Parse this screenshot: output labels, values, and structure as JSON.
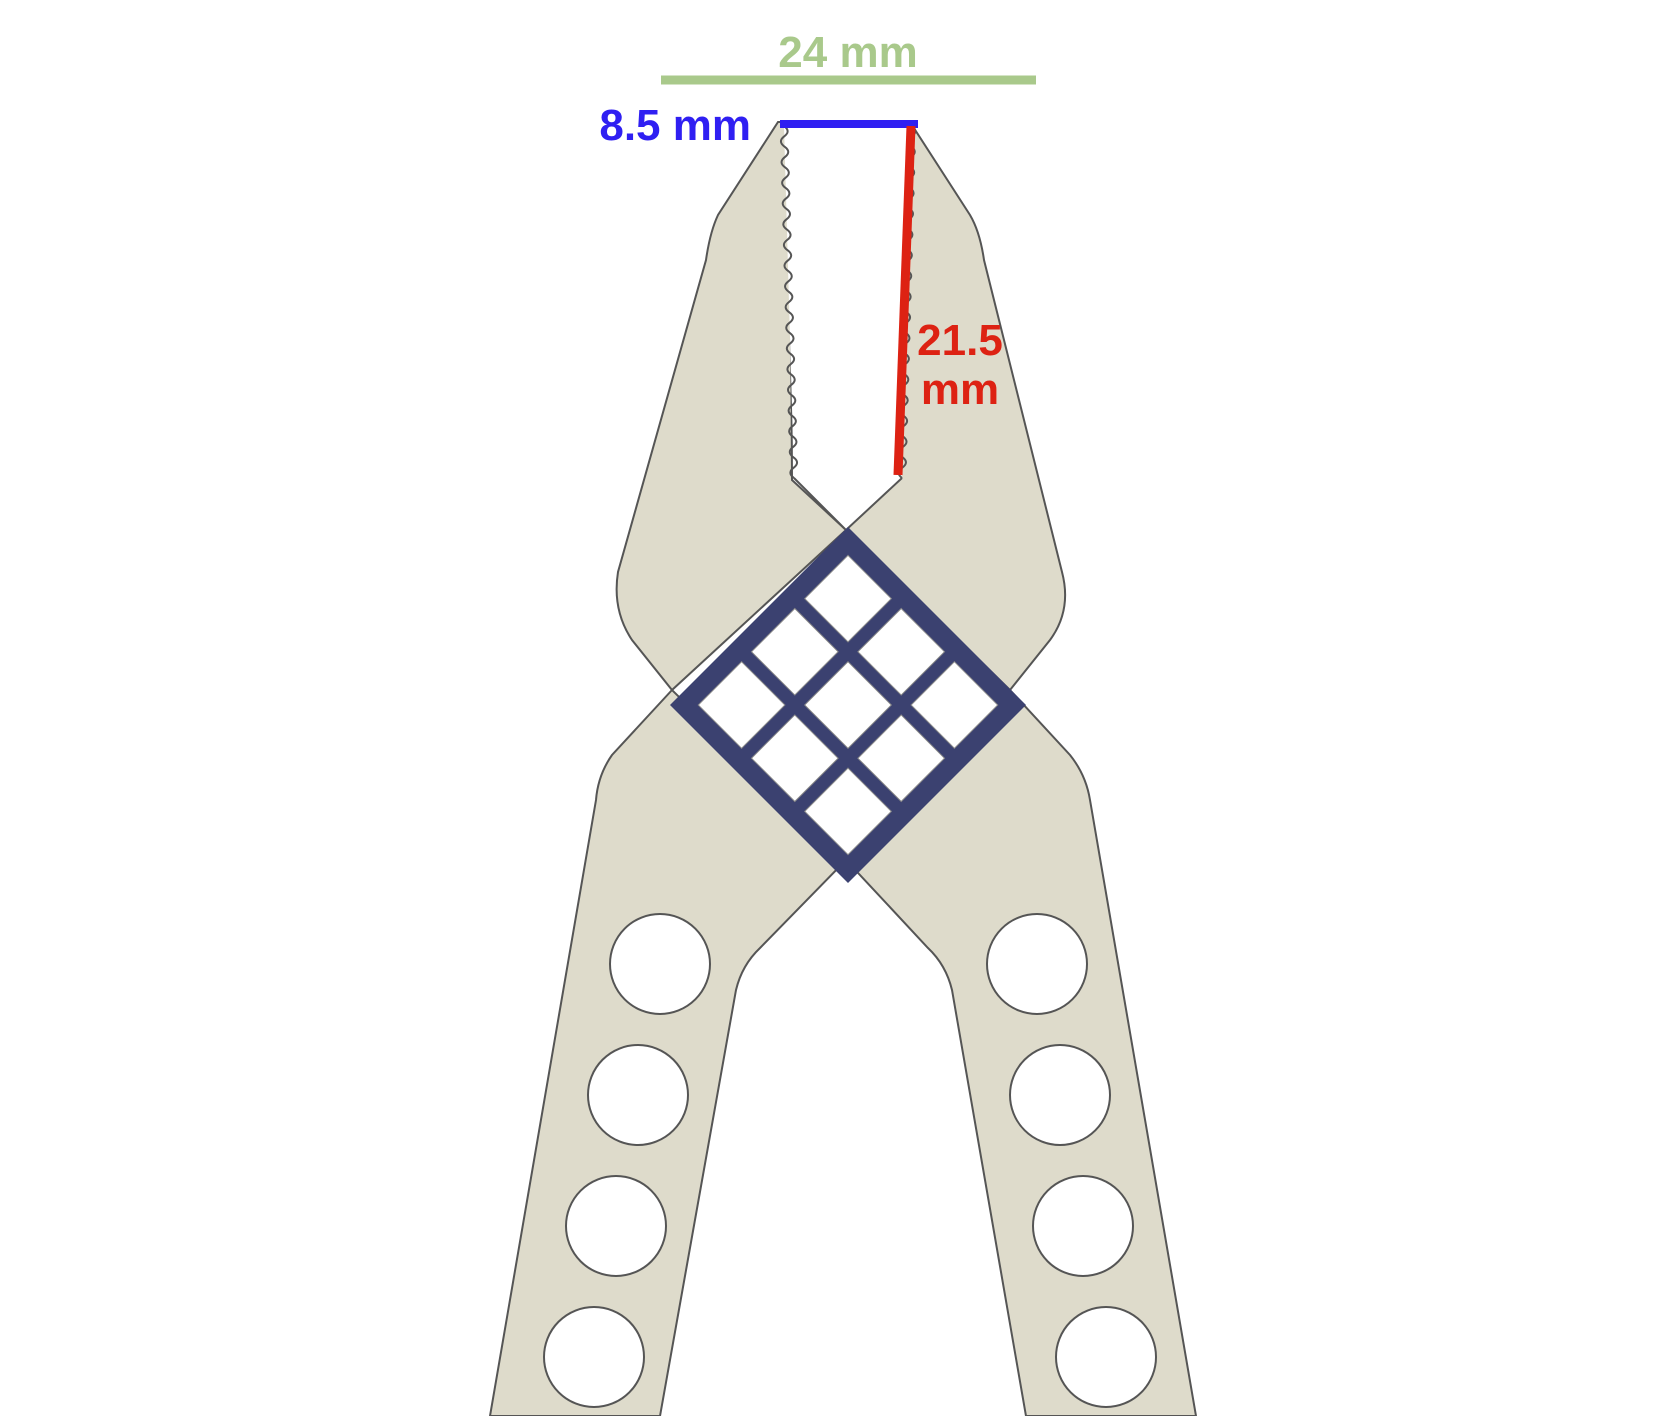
{
  "annotations": {
    "overall_width": {
      "text": "24 mm",
      "color": "#a9c98b"
    },
    "tip_width": {
      "text": "8.5 mm",
      "color": "#2f1ff2"
    },
    "jaw_length": {
      "line1": "21.5",
      "line2": "mm",
      "color": "#dd2213"
    }
  },
  "colors": {
    "body_fill": "#dedbcb",
    "outline": "#555555",
    "hinge": "#3b4170",
    "holes": "#ffffff"
  },
  "hinge_grid": {
    "rows": 3,
    "cols": 3
  },
  "handle_holes_per_side": 4
}
